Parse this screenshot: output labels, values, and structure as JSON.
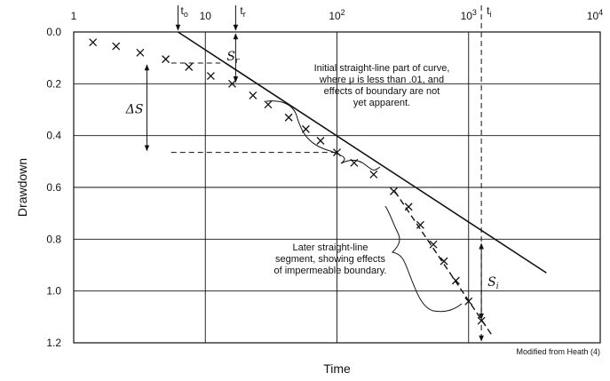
{
  "chart_data": {
    "type": "scatter",
    "x_scale": "log",
    "x_ticks": [
      {
        "value": 1,
        "label": "1",
        "exp": ""
      },
      {
        "value": 10,
        "label": "10",
        "exp": ""
      },
      {
        "value": 100,
        "label": "10",
        "exp": "2"
      },
      {
        "value": 1000,
        "label": "10",
        "exp": "3"
      },
      {
        "value": 10000,
        "label": "10",
        "exp": "4"
      }
    ],
    "y_ticks": [
      "0.0",
      "0.2",
      "0.4",
      "0.6",
      "0.8",
      "1.0",
      "1.2"
    ],
    "xlim": [
      1,
      10000
    ],
    "ylim": [
      0,
      1.2
    ],
    "xlabel": "Time",
    "ylabel": "Drawdown",
    "credit": "Modified from Heath (4)",
    "observations": [
      {
        "x": 1.4,
        "y": 0.04
      },
      {
        "x": 2.1,
        "y": 0.055
      },
      {
        "x": 3.2,
        "y": 0.08
      },
      {
        "x": 5.0,
        "y": 0.105
      },
      {
        "x": 7.5,
        "y": 0.135
      },
      {
        "x": 11,
        "y": 0.17
      },
      {
        "x": 16,
        "y": 0.2
      },
      {
        "x": 23,
        "y": 0.245
      },
      {
        "x": 30,
        "y": 0.28
      },
      {
        "x": 43,
        "y": 0.33
      },
      {
        "x": 58,
        "y": 0.375
      },
      {
        "x": 75,
        "y": 0.42
      },
      {
        "x": 100,
        "y": 0.465
      },
      {
        "x": 135,
        "y": 0.505
      },
      {
        "x": 190,
        "y": 0.55
      },
      {
        "x": 270,
        "y": 0.615
      },
      {
        "x": 350,
        "y": 0.675
      },
      {
        "x": 430,
        "y": 0.745
      },
      {
        "x": 540,
        "y": 0.82
      },
      {
        "x": 650,
        "y": 0.885
      },
      {
        "x": 800,
        "y": 0.96
      },
      {
        "x": 1000,
        "y": 1.04
      },
      {
        "x": 1250,
        "y": 1.115
      }
    ],
    "straight_line": {
      "x0": 6.2,
      "y0": 0.0,
      "x1": 3900,
      "y1": 0.93
    },
    "later_line": {
      "x0": 275,
      "y0": 0.615,
      "x1": 1500,
      "y1": 1.17
    },
    "t0": 6.2,
    "tr": 17,
    "ti": 1250,
    "delta_s": {
      "x_start": 5.5,
      "x_end": 100,
      "y_top": 0.12,
      "y_bottom": 0.465,
      "x_arrow": 7.5
    },
    "s_r": {
      "x": 17,
      "y_top": 0.0,
      "y_bottom": 0.2
    },
    "s_i": {
      "x": 1250,
      "y_top": 0.81,
      "y_bottom": 1.115
    },
    "labels": {
      "t0": "t",
      "t0_sub": "o",
      "tr": "t",
      "tr_sub": "r",
      "ti": "t",
      "ti_sub": "i",
      "sr": "S",
      "sr_sub": "r",
      "si": "S",
      "si_sub": "i",
      "delta_s": "ΔS"
    },
    "annotation_initial": [
      "Initial straight-line part of curve,",
      "where μ is less than .01, and",
      "effects of boundary are not",
      "yet apparent."
    ],
    "annotation_later": [
      "Later straight-line",
      "segment, showing effects",
      "of impermeable boundary."
    ]
  }
}
